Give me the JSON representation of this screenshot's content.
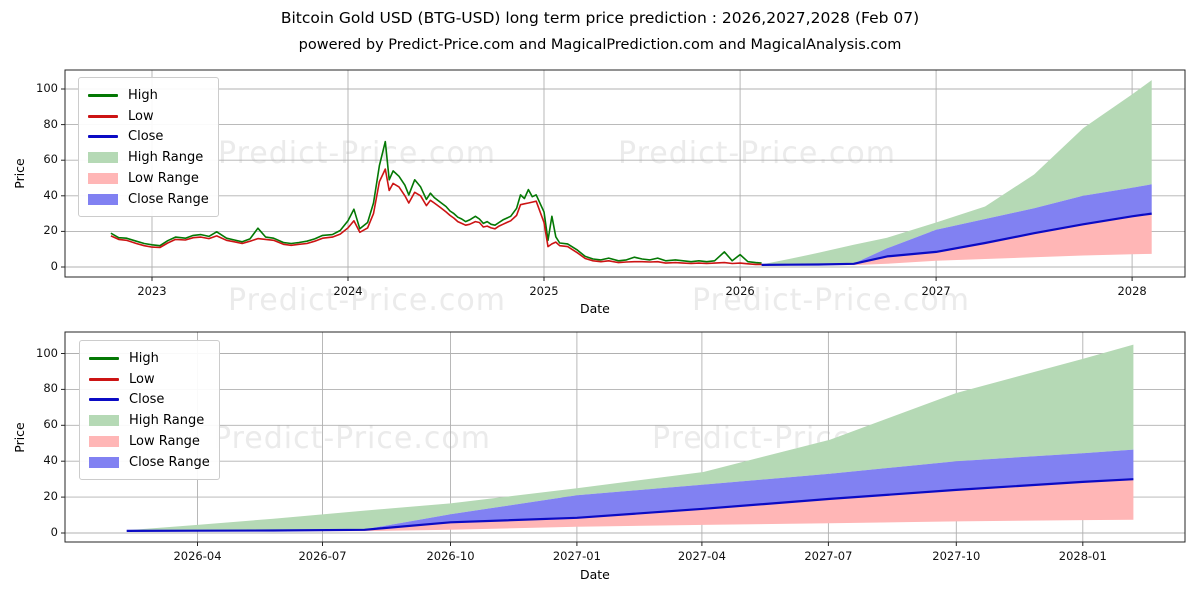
{
  "header": {
    "title": "Bitcoin Gold USD (BTG-USD) long term price prediction : 2026,2027,2028 (Feb 07)",
    "subtitle": "powered by Predict-Price.com and MagicalPrediction.com and MagicalAnalysis.com"
  },
  "watermark": {
    "text": "Predict-Price.com"
  },
  "colors": {
    "high": "#047804",
    "low": "#cc1414",
    "close": "#0b0bc4",
    "high_range": "#b5d9b5",
    "low_range": "#ffb6b6",
    "close_range": "#8181f2",
    "grid": "#b0b0b0",
    "spine": "#262626",
    "tick_text": "#111111",
    "watermark": "#ebebeb"
  },
  "legend": {
    "items": [
      {
        "label": "High",
        "swatch": "line",
        "color_key": "high"
      },
      {
        "label": "Low",
        "swatch": "line",
        "color_key": "low"
      },
      {
        "label": "Close",
        "swatch": "line",
        "color_key": "close"
      },
      {
        "label": "High Range",
        "swatch": "patch",
        "color_key": "high_range"
      },
      {
        "label": "Low Range",
        "swatch": "patch",
        "color_key": "low_range"
      },
      {
        "label": "Close Range",
        "swatch": "patch",
        "color_key": "close_range"
      }
    ]
  },
  "chart_data": [
    {
      "type": "line",
      "name": "history-with-forecast",
      "xlabel": "Date",
      "ylabel": "Price",
      "x_format": "decimal_year",
      "xlim": [
        2022.556,
        2028.27
      ],
      "ylim": [
        -5.6,
        110.7
      ],
      "y_ticks": [
        0,
        20,
        40,
        60,
        80,
        100
      ],
      "x_ticks": [
        {
          "label": "2023",
          "t": 2023
        },
        {
          "label": "2024",
          "t": 2024
        },
        {
          "label": "2025",
          "t": 2025
        },
        {
          "label": "2026",
          "t": 2026
        },
        {
          "label": "2027",
          "t": 2027
        },
        {
          "label": "2028",
          "t": 2028
        }
      ],
      "history": {
        "columns": [
          "date",
          "high",
          "low"
        ],
        "points": [
          [
            2022.79,
            19.0,
            17.5
          ],
          [
            2022.83,
            16.5,
            15.5
          ],
          [
            2022.87,
            16.2,
            15.0
          ],
          [
            2022.92,
            14.5,
            13.2
          ],
          [
            2022.96,
            13.2,
            12.0
          ],
          [
            2023.0,
            12.5,
            11.2
          ],
          [
            2023.04,
            12.0,
            11.0
          ],
          [
            2023.08,
            14.8,
            13.5
          ],
          [
            2023.12,
            16.8,
            15.5
          ],
          [
            2023.17,
            16.2,
            15.2
          ],
          [
            2023.21,
            17.8,
            16.5
          ],
          [
            2023.25,
            18.2,
            16.8
          ],
          [
            2023.29,
            17.2,
            16.0
          ],
          [
            2023.33,
            19.8,
            17.5
          ],
          [
            2023.38,
            16.2,
            15.0
          ],
          [
            2023.42,
            15.2,
            14.2
          ],
          [
            2023.46,
            14.2,
            13.2
          ],
          [
            2023.5,
            15.8,
            14.5
          ],
          [
            2023.54,
            21.8,
            16.0
          ],
          [
            2023.58,
            16.8,
            15.5
          ],
          [
            2023.62,
            16.2,
            15.0
          ],
          [
            2023.67,
            13.8,
            12.8
          ],
          [
            2023.71,
            13.2,
            12.2
          ],
          [
            2023.75,
            13.8,
            12.8
          ],
          [
            2023.79,
            14.5,
            13.2
          ],
          [
            2023.83,
            15.8,
            14.5
          ],
          [
            2023.87,
            17.8,
            16.2
          ],
          [
            2023.92,
            18.2,
            16.8
          ],
          [
            2023.96,
            20.5,
            18.5
          ],
          [
            2024.0,
            26.0,
            22.0
          ],
          [
            2024.03,
            32.5,
            26.0
          ],
          [
            2024.06,
            21.5,
            19.5
          ],
          [
            2024.1,
            25.0,
            22.0
          ],
          [
            2024.13,
            36.0,
            30.0
          ],
          [
            2024.16,
            57.0,
            48.0
          ],
          [
            2024.19,
            70.5,
            55.0
          ],
          [
            2024.21,
            49.0,
            43.0
          ],
          [
            2024.23,
            54.0,
            47.0
          ],
          [
            2024.26,
            51.0,
            45.0
          ],
          [
            2024.29,
            46.0,
            40.0
          ],
          [
            2024.31,
            40.5,
            36.0
          ],
          [
            2024.34,
            49.0,
            42.0
          ],
          [
            2024.37,
            45.0,
            40.0
          ],
          [
            2024.4,
            38.0,
            34.5
          ],
          [
            2024.42,
            41.5,
            37.5
          ],
          [
            2024.44,
            39.0,
            36.0
          ],
          [
            2024.47,
            36.5,
            33.5
          ],
          [
            2024.5,
            34.0,
            31.0
          ],
          [
            2024.52,
            31.5,
            29.0
          ],
          [
            2024.54,
            30.0,
            27.5
          ],
          [
            2024.56,
            28.0,
            25.5
          ],
          [
            2024.58,
            27.0,
            24.5
          ],
          [
            2024.6,
            25.5,
            23.5
          ],
          [
            2024.62,
            26.5,
            24.0
          ],
          [
            2024.65,
            28.5,
            25.5
          ],
          [
            2024.67,
            27.0,
            25.0
          ],
          [
            2024.69,
            24.5,
            22.5
          ],
          [
            2024.71,
            25.5,
            23.0
          ],
          [
            2024.73,
            24.0,
            22.0
          ],
          [
            2024.75,
            23.5,
            21.5
          ],
          [
            2024.77,
            25.0,
            23.0
          ],
          [
            2024.79,
            26.5,
            24.0
          ],
          [
            2024.81,
            27.5,
            25.0
          ],
          [
            2024.83,
            28.5,
            26.0
          ],
          [
            2024.86,
            33.0,
            29.0
          ],
          [
            2024.88,
            40.5,
            35.0
          ],
          [
            2024.9,
            38.5,
            35.5
          ],
          [
            2024.92,
            43.5,
            36.0
          ],
          [
            2024.94,
            39.5,
            36.5
          ],
          [
            2024.96,
            40.5,
            37.0
          ],
          [
            2025.0,
            31.0,
            25.0
          ],
          [
            2025.02,
            15.0,
            11.5
          ],
          [
            2025.04,
            28.5,
            13.0
          ],
          [
            2025.06,
            17.0,
            14.0
          ],
          [
            2025.08,
            13.5,
            12.0
          ],
          [
            2025.12,
            13.0,
            11.5
          ],
          [
            2025.17,
            9.5,
            8.0
          ],
          [
            2025.21,
            6.0,
            4.8
          ],
          [
            2025.25,
            4.5,
            3.5
          ],
          [
            2025.29,
            4.0,
            3.0
          ],
          [
            2025.33,
            5.0,
            3.5
          ],
          [
            2025.38,
            3.5,
            2.5
          ],
          [
            2025.42,
            4.0,
            2.8
          ],
          [
            2025.46,
            5.5,
            3.0
          ],
          [
            2025.5,
            4.5,
            3.0
          ],
          [
            2025.54,
            4.0,
            2.8
          ],
          [
            2025.58,
            5.0,
            3.0
          ],
          [
            2025.62,
            3.5,
            2.2
          ],
          [
            2025.67,
            4.0,
            2.5
          ],
          [
            2025.71,
            3.5,
            2.2
          ],
          [
            2025.75,
            3.0,
            2.0
          ],
          [
            2025.79,
            3.5,
            2.2
          ],
          [
            2025.83,
            3.0,
            2.0
          ],
          [
            2025.87,
            3.5,
            2.2
          ],
          [
            2025.92,
            8.5,
            2.5
          ],
          [
            2025.96,
            3.5,
            2.0
          ],
          [
            2026.0,
            7.0,
            2.2
          ],
          [
            2026.04,
            3.0,
            1.8
          ],
          [
            2026.08,
            2.5,
            1.5
          ],
          [
            2026.11,
            2.2,
            1.5
          ]
        ]
      },
      "prediction": {
        "columns": [
          "date",
          "high_upper",
          "close_upper",
          "close",
          "low_lower"
        ],
        "points": [
          [
            2026.11,
            1.5,
            1.3,
            1.2,
            1.0
          ],
          [
            2026.25,
            4.5,
            1.4,
            1.3,
            1.0
          ],
          [
            2026.4,
            8.0,
            1.5,
            1.4,
            1.0
          ],
          [
            2026.58,
            12.5,
            2.0,
            1.8,
            1.1
          ],
          [
            2026.75,
            16.5,
            10.5,
            6.0,
            1.8
          ],
          [
            2027.0,
            25.0,
            21.0,
            8.5,
            3.5
          ],
          [
            2027.25,
            34.0,
            27.0,
            13.5,
            4.5
          ],
          [
            2027.5,
            52.0,
            33.0,
            19.0,
            5.5
          ],
          [
            2027.75,
            78.0,
            40.0,
            24.0,
            6.5
          ],
          [
            2028.0,
            97.0,
            44.5,
            28.5,
            7.2
          ],
          [
            2028.1,
            105.0,
            46.5,
            30.0,
            7.4
          ]
        ]
      }
    },
    {
      "type": "area",
      "name": "forecast-detail",
      "xlabel": "Date",
      "ylabel": "Price",
      "x_format": "decimal_year",
      "xlim": [
        2025.988,
        2028.202
      ],
      "ylim": [
        -5,
        112
      ],
      "y_ticks": [
        0,
        20,
        40,
        60,
        80,
        100
      ],
      "x_ticks": [
        {
          "label": "2026-04",
          "t": 2026.25
        },
        {
          "label": "2026-07",
          "t": 2026.497
        },
        {
          "label": "2026-10",
          "t": 2026.75
        },
        {
          "label": "2027-01",
          "t": 2027.0
        },
        {
          "label": "2027-04",
          "t": 2027.247
        },
        {
          "label": "2027-07",
          "t": 2027.497
        },
        {
          "label": "2027-10",
          "t": 2027.75
        },
        {
          "label": "2028-01",
          "t": 2028.0
        }
      ],
      "prediction": {
        "columns": [
          "date",
          "high_upper",
          "close_upper",
          "close",
          "low_lower"
        ],
        "points": [
          [
            2026.11,
            1.5,
            1.3,
            1.2,
            1.0
          ],
          [
            2026.25,
            4.5,
            1.4,
            1.3,
            1.0
          ],
          [
            2026.4,
            8.0,
            1.5,
            1.4,
            1.0
          ],
          [
            2026.58,
            12.5,
            2.0,
            1.8,
            1.1
          ],
          [
            2026.75,
            16.5,
            10.5,
            6.0,
            1.8
          ],
          [
            2027.0,
            25.0,
            21.0,
            8.5,
            3.5
          ],
          [
            2027.25,
            34.0,
            27.0,
            13.5,
            4.5
          ],
          [
            2027.5,
            52.0,
            33.0,
            19.0,
            5.5
          ],
          [
            2027.75,
            78.0,
            40.0,
            24.0,
            6.5
          ],
          [
            2028.0,
            97.0,
            44.5,
            28.5,
            7.2
          ],
          [
            2028.1,
            105.0,
            46.5,
            30.0,
            7.4
          ]
        ]
      }
    }
  ]
}
